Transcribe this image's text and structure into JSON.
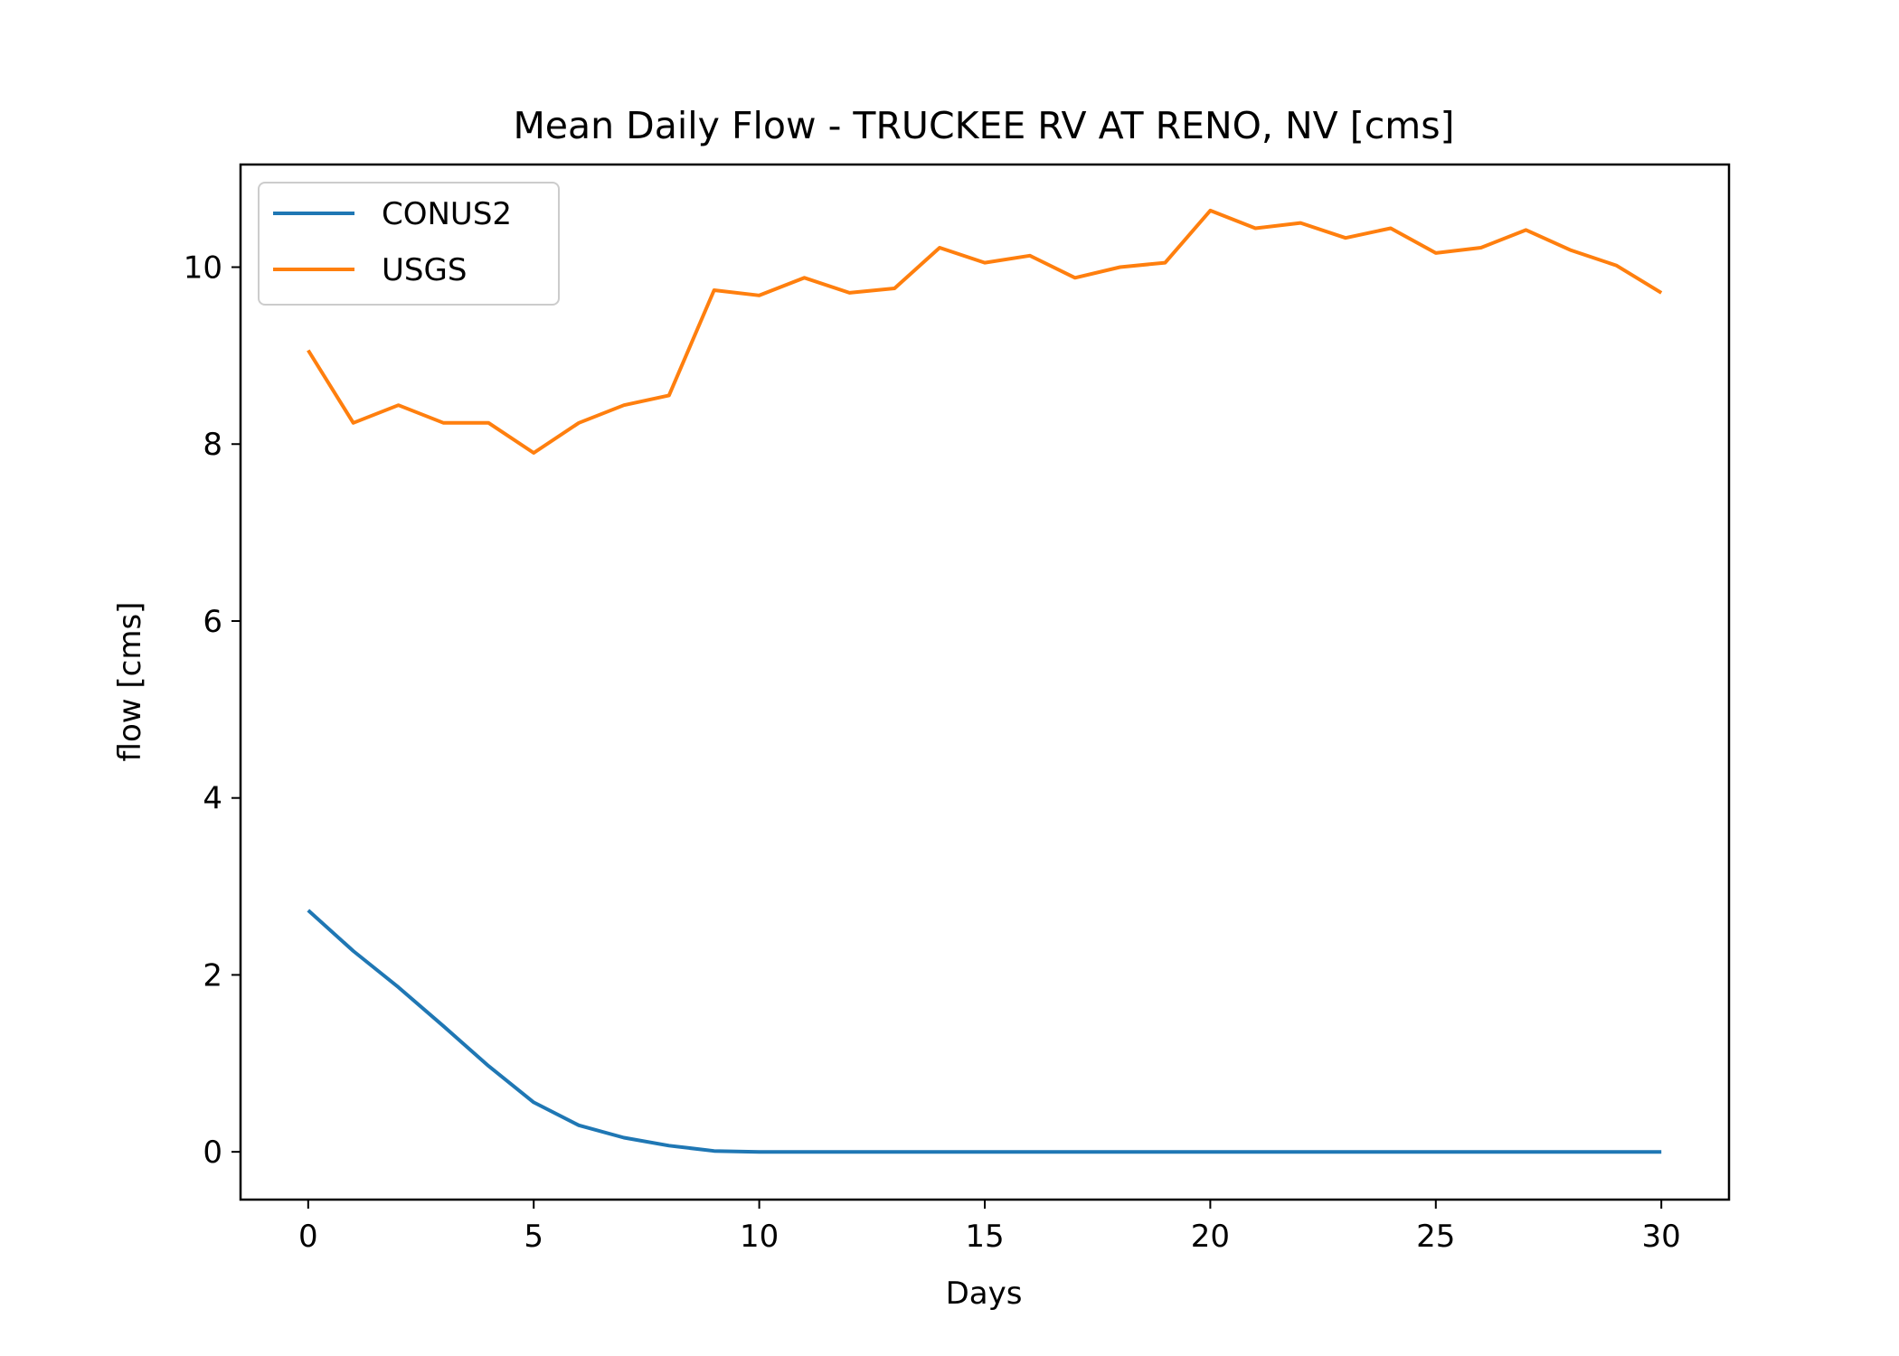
{
  "chart_data": {
    "type": "line",
    "title": "Mean Daily Flow - TRUCKEE RV AT RENO, NV [cms]",
    "xlabel": "Days",
    "ylabel": "flow [cms]",
    "xlim": [
      -1.5,
      31.5
    ],
    "ylim": [
      -0.54,
      11.16
    ],
    "xticks": [
      0,
      5,
      10,
      15,
      20,
      25,
      30
    ],
    "yticks": [
      0,
      2,
      4,
      6,
      8,
      10
    ],
    "grid": false,
    "legend_position": "top-left",
    "x": [
      0,
      1,
      2,
      3,
      4,
      5,
      6,
      7,
      8,
      9,
      10,
      11,
      12,
      13,
      14,
      15,
      16,
      17,
      18,
      19,
      20,
      21,
      22,
      23,
      24,
      25,
      26,
      27,
      28,
      29,
      30
    ],
    "series": [
      {
        "name": "CONUS2",
        "color": "#1f77b4",
        "values": [
          2.73,
          2.27,
          1.86,
          1.42,
          0.97,
          0.56,
          0.3,
          0.16,
          0.07,
          0.01,
          0,
          0,
          0,
          0,
          0,
          0,
          0,
          0,
          0,
          0,
          0,
          0,
          0,
          0,
          0,
          0,
          0,
          0,
          0,
          0,
          0
        ]
      },
      {
        "name": "USGS",
        "color": "#ff7f0e",
        "values": [
          9.06,
          8.24,
          8.44,
          8.24,
          8.24,
          7.9,
          8.24,
          8.44,
          8.55,
          9.74,
          9.68,
          9.88,
          9.71,
          9.76,
          10.22,
          10.05,
          10.13,
          9.88,
          10.0,
          10.05,
          10.64,
          10.44,
          10.5,
          10.33,
          10.44,
          10.16,
          10.22,
          10.42,
          10.19,
          10.02,
          9.71
        ]
      }
    ]
  }
}
